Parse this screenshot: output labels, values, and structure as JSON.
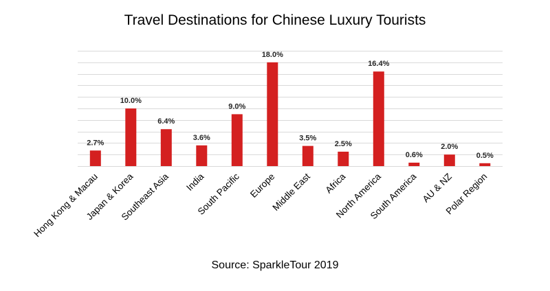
{
  "chart_data": {
    "type": "bar",
    "title": "Travel Destinations for Chinese Luxury Tourists",
    "subtitle": "",
    "xlabel": "",
    "ylabel": "",
    "source": "Source: SparkleTour 2019",
    "categories": [
      "Hong Kong & Macau",
      "Japan & Korea",
      "Southeast Asia",
      "India",
      "South Pacific",
      "Europe",
      "Middle East",
      "Africa",
      "North America",
      "South America",
      "AU & NZ",
      "Polar Region"
    ],
    "values": [
      2.7,
      10.0,
      6.4,
      3.6,
      9.0,
      18.0,
      3.5,
      2.5,
      16.4,
      0.6,
      2.0,
      0.5
    ],
    "data_labels": [
      "2.7%",
      "10.0%",
      "6.4%",
      "3.6%",
      "9.0%",
      "18.0%",
      "3.5%",
      "2.5%",
      "16.4%",
      "0.6%",
      "2.0%",
      "0.5%"
    ],
    "ylim": [
      0,
      20
    ],
    "grid": true,
    "legend": "none",
    "bar_color": "#d42020"
  }
}
